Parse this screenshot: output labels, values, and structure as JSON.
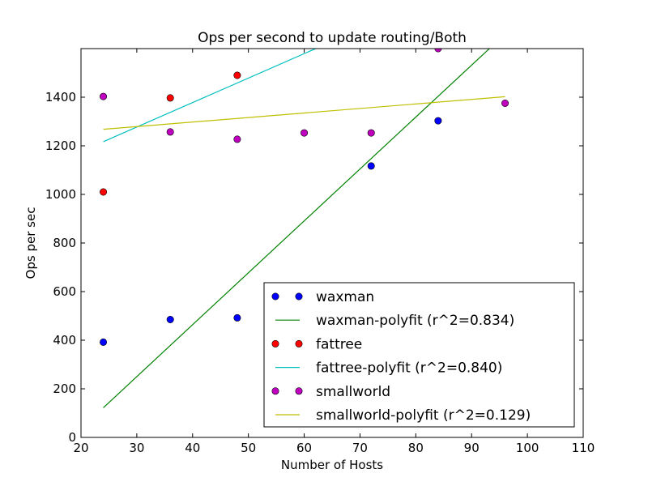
{
  "chart_data": {
    "type": "scatter",
    "title": "Ops per second to update routing/Both",
    "xlabel": "Number of Hosts",
    "ylabel": "Ops per sec",
    "xlim": [
      20,
      110
    ],
    "ylim": [
      0,
      1600
    ],
    "xticks": [
      20,
      30,
      40,
      50,
      60,
      70,
      80,
      90,
      100,
      110
    ],
    "yticks": [
      0,
      200,
      400,
      600,
      800,
      1000,
      1200,
      1400
    ],
    "grid": false,
    "legend_position": "lower-right",
    "series": [
      {
        "name": "waxman",
        "kind": "points",
        "color": "#0000ff",
        "x": [
          24,
          36,
          48,
          72,
          84
        ],
        "y": [
          392,
          485,
          492,
          1117,
          1303
        ]
      },
      {
        "name": "waxman-polyfit (r^2=0.834)",
        "kind": "line",
        "color": "#008000",
        "x": [
          24,
          96
        ],
        "y": [
          122,
          1660
        ]
      },
      {
        "name": "fattree",
        "kind": "points",
        "color": "#ff0000",
        "x": [
          24,
          36,
          48
        ],
        "y": [
          1010,
          1397,
          1490
        ]
      },
      {
        "name": "fattree-polyfit (r^2=0.840)",
        "kind": "line",
        "color": "#00bfbf",
        "x": [
          24,
          72
        ],
        "y": [
          1217,
          1700
        ]
      },
      {
        "name": "smallworld",
        "kind": "points",
        "color": "#bf00bf",
        "x": [
          24,
          36,
          48,
          60,
          72,
          84,
          96
        ],
        "y": [
          1403,
          1257,
          1227,
          1253,
          1253,
          1600,
          1375
        ]
      },
      {
        "name": "smallworld-polyfit (r^2=0.129)",
        "kind": "line",
        "color": "#bfbf00",
        "x": [
          24,
          96
        ],
        "y": [
          1268,
          1402
        ]
      }
    ]
  }
}
